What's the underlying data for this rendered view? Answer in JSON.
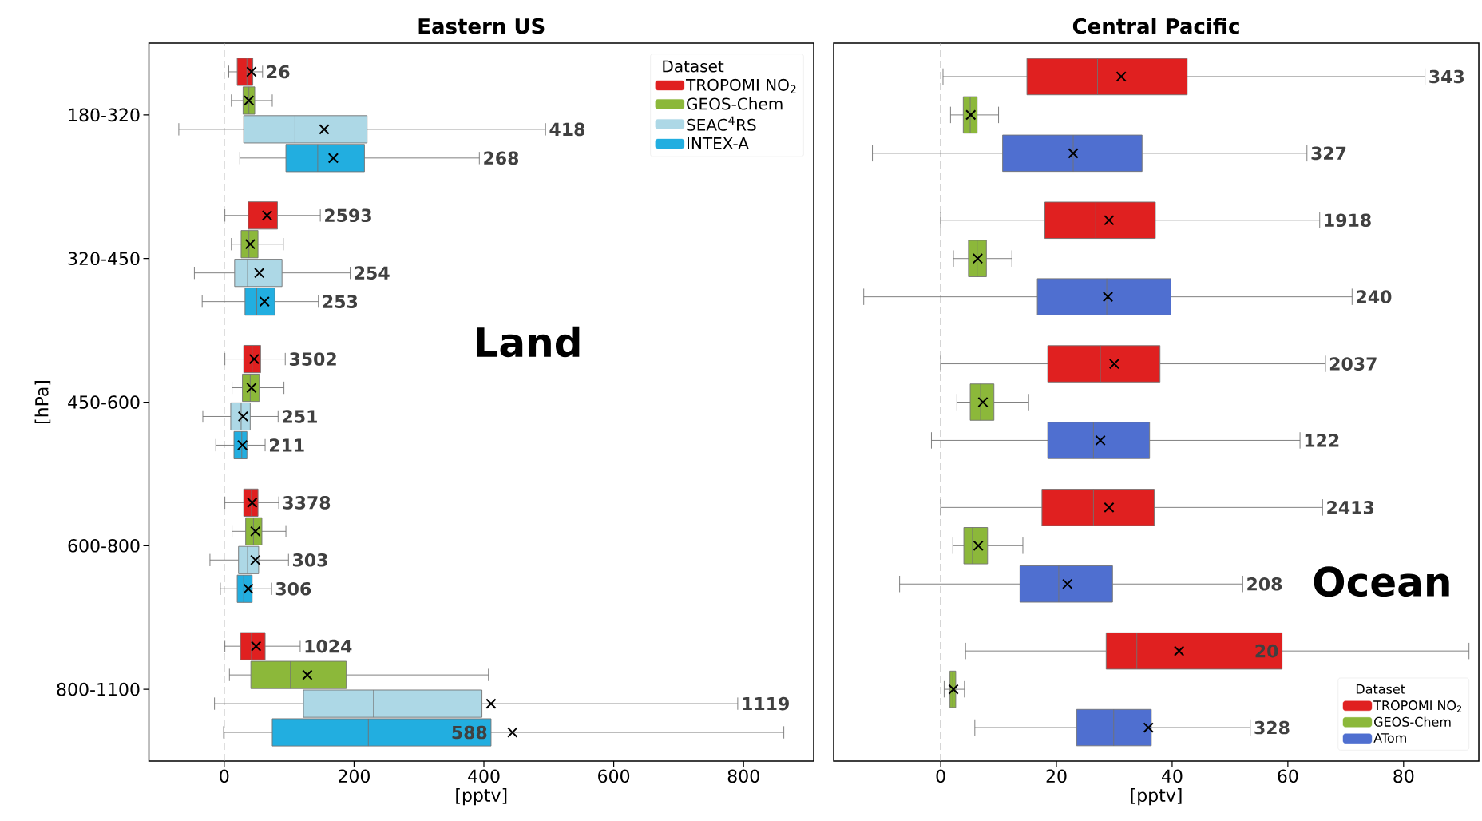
{
  "chart_data": [
    {
      "type": "box",
      "orientation": "horizontal",
      "title": "Eastern US",
      "xlabel": "[pptv]",
      "ylabel": "[hPa]",
      "legend_title": "Dataset",
      "legend": "top right",
      "categories": [
        "180-320",
        "320-450",
        "450-600",
        "600-800",
        "800-1100"
      ],
      "xlim": [
        -116,
        908
      ],
      "xticks": [
        0,
        200,
        400,
        600,
        800
      ],
      "ref_lines": [
        {
          "axis": "x",
          "value": 0,
          "color": "#b0b0b0",
          "line_style": "dashed"
        }
      ],
      "annotations": [
        "Land"
      ],
      "series": [
        {
          "name": "TROPOMI NO$_{2}$",
          "color": "#e02020",
          "value_labels": [
            "26",
            "2593",
            "3502",
            "3378",
            "1024"
          ],
          "boxes": [
            {
              "low": 7,
              "q1": 20,
              "median": 35,
              "q3": 44,
              "high": 59,
              "mean": 42
            },
            {
              "low": 1,
              "q1": 37,
              "median": 55,
              "q3": 82,
              "high": 148,
              "mean": 66
            },
            {
              "low": 1,
              "q1": 30,
              "median": 43,
              "q3": 56,
              "high": 94,
              "mean": 46
            },
            {
              "low": 1,
              "q1": 30,
              "median": 42,
              "q3": 52,
              "high": 84,
              "mean": 43
            },
            {
              "low": 1,
              "q1": 25,
              "median": 42,
              "q3": 63,
              "high": 117,
              "mean": 49
            }
          ]
        },
        {
          "name": "GEOS-Chem",
          "color": "#8cb83a",
          "boxes": [
            {
              "low": 11,
              "q1": 29,
              "median": 38,
              "q3": 47,
              "high": 74,
              "mean": 38
            },
            {
              "low": 11,
              "q1": 26,
              "median": 38,
              "q3": 52,
              "high": 91,
              "mean": 40
            },
            {
              "low": 12,
              "q1": 28,
              "median": 40,
              "q3": 54,
              "high": 92,
              "mean": 42
            },
            {
              "low": 12,
              "q1": 33,
              "median": 45,
              "q3": 58,
              "high": 95,
              "mean": 48
            },
            {
              "low": 8,
              "q1": 41,
              "median": 102,
              "q3": 188,
              "high": 407,
              "mean": 128
            }
          ]
        },
        {
          "name": "SEAC$^{4}$RS",
          "color": "#add8e6",
          "value_labels": [
            "418",
            "254",
            "251",
            "303",
            "1119"
          ],
          "boxes": [
            {
              "low": -70,
              "q1": 30,
              "median": 109,
              "q3": 220,
              "high": 495,
              "mean": 154
            },
            {
              "low": -46,
              "q1": 16,
              "median": 36,
              "q3": 89,
              "high": 194,
              "mean": 54
            },
            {
              "low": -33,
              "q1": 10,
              "median": 26,
              "q3": 40,
              "high": 83,
              "mean": 29
            },
            {
              "low": -22,
              "q1": 22,
              "median": 36,
              "q3": 53,
              "high": 99,
              "mean": 48
            },
            {
              "low": -15,
              "q1": 122,
              "median": 230,
              "q3": 397,
              "high": 791,
              "mean": 411
            }
          ]
        },
        {
          "name": "INTEX-A",
          "color": "#22aee0",
          "value_labels": [
            "268",
            "253",
            "211",
            "306",
            "588"
          ],
          "boxes": [
            {
              "low": 24,
              "q1": 95,
              "median": 144,
              "q3": 216,
              "high": 393,
              "mean": 168
            },
            {
              "low": -34,
              "q1": 32,
              "median": 50,
              "q3": 78,
              "high": 145,
              "mean": 62
            },
            {
              "low": -13,
              "q1": 15,
              "median": 27,
              "q3": 35,
              "high": 63,
              "mean": 28
            },
            {
              "low": -6,
              "q1": 20,
              "median": 30,
              "q3": 43,
              "high": 73,
              "mean": 37
            },
            {
              "low": -1,
              "q1": 74,
              "median": 222,
              "q3": 411,
              "high": 862,
              "mean": 444
            }
          ]
        }
      ]
    },
    {
      "type": "box",
      "orientation": "horizontal",
      "title": "Central Pacific",
      "xlabel": "[pptv]",
      "legend_title": "Dataset",
      "legend": "bottom right",
      "tick_labels": "x",
      "categories": [
        null,
        null,
        null,
        null,
        null
      ],
      "xlim": [
        -18.5,
        93
      ],
      "xticks": [
        0,
        20,
        40,
        60,
        80
      ],
      "ref_lines": [
        {
          "axis": "x",
          "value": 0,
          "color": "#b0b0b0",
          "line_style": "dashed"
        }
      ],
      "annotations": [
        "Ocean"
      ],
      "series": [
        {
          "name": "TROPOMI NO$_{2}$",
          "color": "#e02020",
          "value_labels": [
            "343",
            "1918",
            "2037",
            "2413",
            "20"
          ],
          "boxes": [
            {
              "low": 0.4,
              "q1": 14.9,
              "median": 27.1,
              "q3": 42.6,
              "high": 83.7,
              "mean": 31.2
            },
            {
              "low": 0,
              "q1": 18,
              "median": 26.8,
              "q3": 37.1,
              "high": 65.5,
              "mean": 29.1
            },
            {
              "low": 0,
              "q1": 18.5,
              "median": 27.6,
              "q3": 37.9,
              "high": 66.5,
              "mean": 30
            },
            {
              "low": 0,
              "q1": 17.5,
              "median": 26.4,
              "q3": 36.9,
              "high": 66,
              "mean": 29.1
            },
            {
              "low": 4.3,
              "q1": 28.6,
              "median": 33.9,
              "q3": 59,
              "high": 91.3,
              "mean": 41.2
            }
          ]
        },
        {
          "name": "GEOS-Chem",
          "color": "#8cb83a",
          "boxes": [
            {
              "low": 1.7,
              "q1": 3.9,
              "median": 5.1,
              "q3": 6.3,
              "high": 10,
              "mean": 5.2
            },
            {
              "low": 2.2,
              "q1": 4.8,
              "median": 6.3,
              "q3": 7.9,
              "high": 12.3,
              "mean": 6.4
            },
            {
              "low": 2.8,
              "q1": 5.1,
              "median": 6.9,
              "q3": 9.2,
              "high": 15.2,
              "mean": 7.3
            },
            {
              "low": 2.1,
              "q1": 4,
              "median": 5.5,
              "q3": 8.1,
              "high": 14.2,
              "mean": 6.5
            },
            {
              "low": 0.6,
              "q1": 1.6,
              "median": 2.1,
              "q3": 2.6,
              "high": 4.1,
              "mean": 2.2
            }
          ]
        },
        {
          "name": "ATom",
          "color": "#4f6fd0",
          "value_labels": [
            "327",
            "240",
            "122",
            "208",
            "328"
          ],
          "boxes": [
            {
              "low": -11.8,
              "q1": 10.7,
              "median": 22.9,
              "q3": 34.8,
              "high": 63.3,
              "mean": 22.9
            },
            {
              "low": -13.3,
              "q1": 16.7,
              "median": 28.7,
              "q3": 39.8,
              "high": 71.1,
              "mean": 28.9
            },
            {
              "low": -1.6,
              "q1": 18.5,
              "median": 26.4,
              "q3": 36.1,
              "high": 62.1,
              "mean": 27.6
            },
            {
              "low": -7.1,
              "q1": 13.7,
              "median": 20.4,
              "q3": 29.7,
              "high": 52.2,
              "mean": 21.9
            },
            {
              "low": 5.9,
              "q1": 23.5,
              "median": 29.9,
              "q3": 36.4,
              "high": 53.5,
              "mean": 35.9
            }
          ]
        }
      ]
    }
  ]
}
